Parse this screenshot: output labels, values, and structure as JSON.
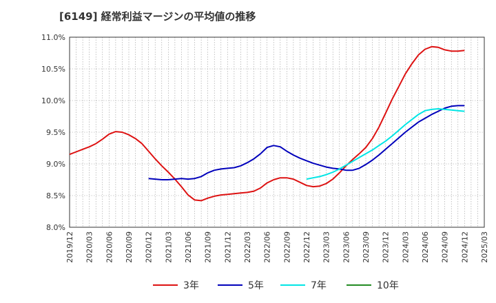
{
  "chart_data": {
    "type": "line",
    "title": "[6149]  経常利益マージンの平均値の推移",
    "xlabel": "",
    "ylabel": "",
    "ylim": [
      8.0,
      11.0
    ],
    "yticks": [
      "8.0%",
      "8.5%",
      "9.0%",
      "9.5%",
      "10.0%",
      "10.5%",
      "11.0%"
    ],
    "ytick_values": [
      8.0,
      8.5,
      9.0,
      9.5,
      10.0,
      10.5,
      11.0
    ],
    "x_start": "2019/12",
    "x_end": "2025/03",
    "x_ticks": [
      "2019/12",
      "2020/03",
      "2020/06",
      "2020/09",
      "2020/12",
      "2021/03",
      "2021/06",
      "2021/09",
      "2021/12",
      "2022/03",
      "2022/06",
      "2022/09",
      "2022/12",
      "2023/03",
      "2023/06",
      "2023/09",
      "2023/12",
      "2024/03",
      "2024/06",
      "2024/09",
      "2024/12",
      "2025/03"
    ],
    "grid": true,
    "legend_position": "bottom",
    "series": [
      {
        "name": "3年",
        "color": "#dd1111",
        "x": [
          "2019/12",
          "2020/01",
          "2020/02",
          "2020/03",
          "2020/04",
          "2020/05",
          "2020/06",
          "2020/07",
          "2020/08",
          "2020/09",
          "2020/10",
          "2020/11",
          "2020/12",
          "2021/01",
          "2021/02",
          "2021/03",
          "2021/04",
          "2021/05",
          "2021/06",
          "2021/07",
          "2021/08",
          "2021/09",
          "2021/10",
          "2021/11",
          "2021/12",
          "2022/01",
          "2022/02",
          "2022/03",
          "2022/04",
          "2022/05",
          "2022/06",
          "2022/07",
          "2022/08",
          "2022/09",
          "2022/10",
          "2022/11",
          "2022/12",
          "2023/01",
          "2023/02",
          "2023/03",
          "2023/04",
          "2023/05",
          "2023/06",
          "2023/07",
          "2023/08",
          "2023/09",
          "2023/10",
          "2023/11",
          "2023/12",
          "2024/01",
          "2024/02",
          "2024/03",
          "2024/04",
          "2024/05",
          "2024/06",
          "2024/07",
          "2024/08",
          "2024/09",
          "2024/10",
          "2024/11",
          "2024/12"
        ],
        "values": [
          9.15,
          9.19,
          9.23,
          9.27,
          9.32,
          9.39,
          9.47,
          9.51,
          9.5,
          9.46,
          9.4,
          9.32,
          9.2,
          9.08,
          8.97,
          8.87,
          8.76,
          8.64,
          8.51,
          8.43,
          8.42,
          8.46,
          8.49,
          8.51,
          8.52,
          8.53,
          8.54,
          8.55,
          8.57,
          8.62,
          8.7,
          8.75,
          8.78,
          8.78,
          8.76,
          8.71,
          8.66,
          8.64,
          8.65,
          8.69,
          8.76,
          8.86,
          8.97,
          9.07,
          9.16,
          9.26,
          9.4,
          9.58,
          9.8,
          10.02,
          10.22,
          10.42,
          10.58,
          10.72,
          10.81,
          10.85,
          10.84,
          10.8,
          10.78,
          10.78,
          10.79
        ]
      },
      {
        "name": "5年",
        "color": "#0000bb",
        "x": [
          "2020/12",
          "2021/01",
          "2021/02",
          "2021/03",
          "2021/04",
          "2021/05",
          "2021/06",
          "2021/07",
          "2021/08",
          "2021/09",
          "2021/10",
          "2021/11",
          "2021/12",
          "2022/01",
          "2022/02",
          "2022/03",
          "2022/04",
          "2022/05",
          "2022/06",
          "2022/07",
          "2022/08",
          "2022/09",
          "2022/10",
          "2022/11",
          "2022/12",
          "2023/01",
          "2023/02",
          "2023/03",
          "2023/04",
          "2023/05",
          "2023/06",
          "2023/07",
          "2023/08",
          "2023/09",
          "2023/10",
          "2023/11",
          "2023/12",
          "2024/01",
          "2024/02",
          "2024/03",
          "2024/04",
          "2024/05",
          "2024/06",
          "2024/07",
          "2024/08",
          "2024/09",
          "2024/10",
          "2024/11",
          "2024/12"
        ],
        "values": [
          8.77,
          8.76,
          8.75,
          8.75,
          8.76,
          8.77,
          8.76,
          8.77,
          8.8,
          8.86,
          8.9,
          8.92,
          8.93,
          8.94,
          8.97,
          9.02,
          9.08,
          9.16,
          9.26,
          9.29,
          9.27,
          9.2,
          9.14,
          9.09,
          9.05,
          9.01,
          8.98,
          8.95,
          8.93,
          8.92,
          8.9,
          8.9,
          8.93,
          8.99,
          9.06,
          9.14,
          9.23,
          9.32,
          9.41,
          9.5,
          9.58,
          9.66,
          9.72,
          9.78,
          9.83,
          9.88,
          9.91,
          9.92,
          9.92
        ]
      },
      {
        "name": "7年",
        "color": "#00e5e5",
        "x": [
          "2022/12",
          "2023/01",
          "2023/02",
          "2023/03",
          "2023/04",
          "2023/05",
          "2023/06",
          "2023/07",
          "2023/08",
          "2023/09",
          "2023/10",
          "2023/11",
          "2023/12",
          "2024/01",
          "2024/02",
          "2024/03",
          "2024/04",
          "2024/05",
          "2024/06",
          "2024/07",
          "2024/08",
          "2024/09",
          "2024/10",
          "2024/11",
          "2024/12"
        ],
        "values": [
          8.76,
          8.78,
          8.8,
          8.83,
          8.87,
          8.92,
          8.98,
          9.04,
          9.1,
          9.16,
          9.22,
          9.29,
          9.36,
          9.44,
          9.53,
          9.62,
          9.7,
          9.78,
          9.84,
          9.86,
          9.87,
          9.86,
          9.85,
          9.84,
          9.83
        ]
      },
      {
        "name": "10年",
        "color": "#228b22",
        "x": [],
        "values": []
      }
    ]
  }
}
